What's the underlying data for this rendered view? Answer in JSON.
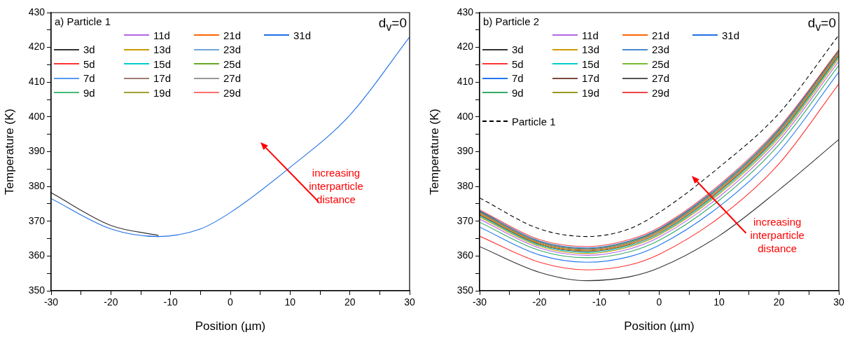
{
  "chart_data": [
    {
      "type": "line",
      "title": "a) Particle 1",
      "xlabel": "Position (µm)",
      "ylabel": "Temperature (K)",
      "annotations": [
        "d$_{v}$=0",
        "increasing interparticle distance"
      ],
      "x": [
        -30,
        -20,
        -12,
        -5,
        0,
        10,
        20,
        30
      ],
      "xlim": [
        -30,
        30
      ],
      "ylim": [
        350,
        430
      ],
      "xticks": [
        -30,
        {
          "value": -25,
          "label": null
        },
        -20,
        {
          "value": -15,
          "label": null
        },
        -10,
        {
          "value": -5,
          "label": null
        },
        0,
        {
          "value": 5,
          "label": null
        },
        10,
        {
          "value": 15,
          "label": null
        },
        20,
        {
          "value": 25,
          "label": null
        },
        30
      ],
      "yticks": [
        350,
        {
          "value": 355,
          "label": null
        },
        360,
        {
          "value": 365,
          "label": null
        },
        370,
        {
          "value": 375,
          "label": null
        },
        380,
        {
          "value": 385,
          "label": null
        },
        390,
        {
          "value": 395,
          "label": null
        },
        400,
        {
          "value": 405,
          "label": null
        },
        410,
        {
          "value": 415,
          "label": null
        },
        420,
        {
          "value": 425,
          "label": null
        },
        430
      ],
      "grid": false,
      "legend": "top left",
      "marker": "none",
      "line_style": "solid",
      "series": [
        {
          "name": "3d",
          "color": "#333333",
          "values": [
            378.2,
            368.8,
            365.9,
            null,
            null,
            null,
            null,
            null
          ]
        },
        {
          "name": "5d",
          "color": "#ff3333",
          "values": [
            null,
            null,
            null,
            null,
            null,
            null,
            null,
            null
          ]
        },
        {
          "name": "7d",
          "color": "#5599ee",
          "values": [
            null,
            null,
            null,
            null,
            null,
            null,
            null,
            null
          ]
        },
        {
          "name": "9d",
          "color": "#44bb77",
          "values": [
            null,
            null,
            null,
            null,
            null,
            null,
            null,
            null
          ]
        },
        {
          "name": "11d",
          "color": "#b266e6",
          "values": [
            null,
            null,
            null,
            null,
            null,
            null,
            null,
            null
          ]
        },
        {
          "name": "13d",
          "color": "#cc9900",
          "values": [
            null,
            null,
            null,
            null,
            null,
            null,
            null,
            null
          ]
        },
        {
          "name": "15d",
          "color": "#00cccc",
          "values": [
            null,
            null,
            null,
            null,
            null,
            null,
            null,
            null
          ]
        },
        {
          "name": "17d",
          "color": "#a07b78",
          "values": [
            null,
            null,
            null,
            null,
            null,
            null,
            null,
            null
          ]
        },
        {
          "name": "19d",
          "color": "#a0a033",
          "values": [
            null,
            null,
            null,
            null,
            null,
            null,
            null,
            null
          ]
        },
        {
          "name": "21d",
          "color": "#ff6600",
          "values": [
            null,
            null,
            null,
            null,
            null,
            null,
            null,
            null
          ]
        },
        {
          "name": "23d",
          "color": "#6fa5dd",
          "values": [
            null,
            null,
            null,
            null,
            null,
            null,
            null,
            null
          ]
        },
        {
          "name": "25d",
          "color": "#66aa22",
          "values": [
            null,
            null,
            null,
            null,
            null,
            null,
            null,
            null
          ]
        },
        {
          "name": "27d",
          "color": "#999999",
          "values": [
            null,
            null,
            null,
            null,
            null,
            null,
            null,
            null
          ]
        },
        {
          "name": "29d",
          "color": "#ff7070",
          "values": [
            null,
            null,
            null,
            null,
            null,
            null,
            null,
            null
          ]
        },
        {
          "name": "31d",
          "color": "#1f6fe5",
          "values": [
            376.5,
            367.8,
            365.6,
            367.8,
            372.5,
            385.5,
            400.5,
            423
          ]
        }
      ]
    },
    {
      "type": "line",
      "title": "b) Particle 2",
      "xlabel": "Position (µm)",
      "ylabel": "Temperature (K)",
      "annotations": [
        "d$_{v}$=0",
        {
          "text": "increasing interparticle distance",
          "x": 14,
          "y": 371
        }
      ],
      "x": [
        -30,
        -20,
        -12,
        -5,
        0,
        10,
        20,
        30
      ],
      "xlim": [
        -30,
        30
      ],
      "ylim": [
        350,
        430
      ],
      "xticks": [
        -30,
        {
          "value": -25,
          "label": null
        },
        -20,
        {
          "value": -15,
          "label": null
        },
        -10,
        {
          "value": -5,
          "label": null
        },
        0,
        {
          "value": 5,
          "label": null
        },
        10,
        {
          "value": 15,
          "label": null
        },
        20,
        {
          "value": 25,
          "label": null
        },
        30
      ],
      "yticks": [
        350,
        {
          "value": 355,
          "label": null
        },
        360,
        {
          "value": 365,
          "label": null
        },
        370,
        {
          "value": 375,
          "label": null
        },
        380,
        {
          "value": 385,
          "label": null
        },
        390,
        {
          "value": 395,
          "label": null
        },
        400,
        {
          "value": 405,
          "label": null
        },
        410,
        {
          "value": 415,
          "label": null
        },
        420,
        {
          "value": 425,
          "label": null
        },
        430
      ],
      "grid": false,
      "legend": "top left",
      "marker": "none",
      "line_style": "solid",
      "series": [
        {
          "name": "3d",
          "color": "#333333",
          "values": [
            362.7,
            355.3,
            352.9,
            354,
            356.6,
            365.8,
            379,
            393.5
          ]
        },
        {
          "name": "5d",
          "color": "#ff3333",
          "values": [
            365.7,
            358.2,
            356,
            357.4,
            360.5,
            371,
            386.5,
            409.5
          ]
        },
        {
          "name": "7d",
          "color": "#2277ee",
          "values": [
            368.3,
            360.3,
            358.2,
            359.8,
            363.1,
            374.2,
            390,
            412.9
          ]
        },
        {
          "name": "9d",
          "color": "#33aa66",
          "values": [
            369.7,
            361.6,
            359.5,
            361.2,
            364.5,
            376,
            392,
            414.8
          ]
        },
        {
          "name": "11d",
          "color": "#b266e6",
          "values": [
            370.6,
            362.3,
            360.2,
            362,
            365.4,
            377,
            393.2,
            416
          ]
        },
        {
          "name": "13d",
          "color": "#cc9900",
          "values": [
            371.2,
            362.8,
            360.7,
            362.6,
            366,
            377.8,
            394,
            416.8
          ]
        },
        {
          "name": "15d",
          "color": "#00cccc",
          "values": [
            371.5,
            363.1,
            361,
            362.9,
            366.3,
            378.2,
            394.5,
            417.3
          ]
        },
        {
          "name": "17d",
          "color": "#7a4a3a",
          "values": [
            371.8,
            363.3,
            361.3,
            363.2,
            366.6,
            378.6,
            394.9,
            417.6
          ]
        },
        {
          "name": "19d",
          "color": "#999922",
          "values": [
            372,
            363.5,
            361.5,
            363.4,
            366.9,
            378.8,
            395.2,
            417.9
          ]
        },
        {
          "name": "21d",
          "color": "#ff6600",
          "values": [
            372.3,
            363.7,
            361.7,
            363.6,
            367.1,
            379.1,
            395.5,
            418.2
          ]
        },
        {
          "name": "23d",
          "color": "#4a88cc",
          "values": [
            372.5,
            363.9,
            361.9,
            363.8,
            367.3,
            379.4,
            395.8,
            418.5
          ]
        },
        {
          "name": "25d",
          "color": "#77bb33",
          "values": [
            372.6,
            364,
            362,
            364,
            367.4,
            379.6,
            396,
            418.7
          ]
        },
        {
          "name": "27d",
          "color": "#555555",
          "values": [
            372.8,
            364.1,
            362.1,
            364.1,
            367.6,
            379.7,
            396.2,
            418.9
          ]
        },
        {
          "name": "29d",
          "color": "#ee4444",
          "values": [
            373.3,
            364.7,
            362.7,
            364.7,
            368.2,
            380.4,
            396.9,
            419.3
          ]
        },
        {
          "name": "31d",
          "color": "#1f6fe5",
          "values": [
            373,
            364.3,
            362.3,
            364.3,
            367.8,
            380,
            396.5,
            419.2
          ]
        },
        {
          "name": "Particle 1",
          "color": "#000000",
          "line_style": "dashed",
          "values": [
            376.7,
            367.8,
            365.6,
            367.8,
            372.5,
            385.5,
            401,
            423.5
          ]
        }
      ]
    }
  ]
}
